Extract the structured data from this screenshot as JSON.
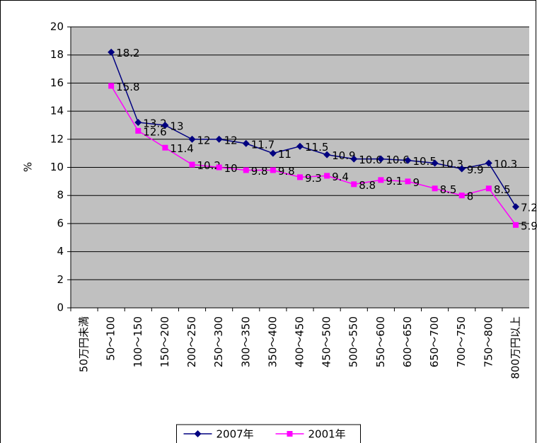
{
  "chart_data": {
    "type": "line",
    "y_label": "%",
    "categories": [
      "50万円未満",
      "50～100",
      "100～150",
      "150～200",
      "200～250",
      "250～300",
      "300～350",
      "350～400",
      "400～450",
      "450～500",
      "500～550",
      "550～600",
      "600～650",
      "650～700",
      "700～750",
      "750～800",
      "800万円以上"
    ],
    "series": [
      {
        "name": "2007年",
        "color": "#000080",
        "marker": "diamond",
        "values": [
          null,
          18.2,
          13.2,
          13,
          12,
          12,
          11.7,
          11,
          11.5,
          10.9,
          10.6,
          10.6,
          10.5,
          10.3,
          9.9,
          10.3,
          7.2
        ]
      },
      {
        "name": "2001年",
        "color": "#ff00ff",
        "marker": "square",
        "values": [
          null,
          15.8,
          12.6,
          11.4,
          10.2,
          10,
          9.8,
          9.8,
          9.3,
          9.4,
          8.8,
          9.1,
          9,
          8.5,
          8,
          8.5,
          5.9
        ]
      }
    ],
    "ylim": [
      0,
      20
    ],
    "yticks": [
      0,
      2,
      4,
      6,
      8,
      10,
      12,
      14,
      16,
      18,
      20
    ],
    "grid": true,
    "plot_background": "#c0c0c0",
    "legend": "bottom"
  }
}
